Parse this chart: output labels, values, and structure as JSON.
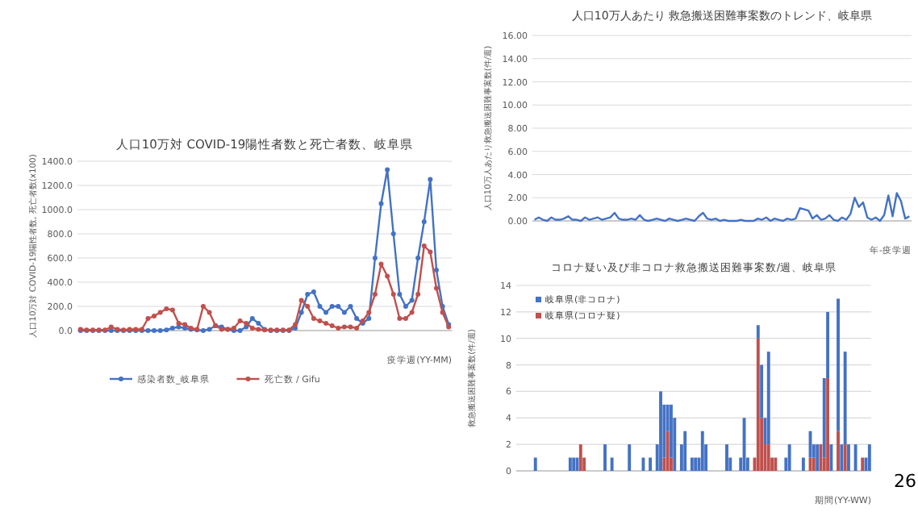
{
  "chart_data": [
    {
      "type": "line",
      "title": "人口10万対 COVID-19陽性者数と死亡者数、岐阜県",
      "xlabel": "疫学週(YY-MM)",
      "ylabel": "人口10万対 COVID-19陽性者数, 死亡者数(x100)",
      "categories": [
        null,
        null,
        null,
        null,
        null,
        null,
        null,
        null,
        null,
        null,
        null,
        null,
        null,
        null,
        null,
        null,
        null,
        null,
        null,
        null,
        null,
        null,
        null,
        null,
        null,
        null,
        null,
        null,
        null,
        null,
        null,
        null,
        null,
        null,
        null,
        null,
        null,
        null,
        null,
        null,
        null,
        null,
        null,
        null,
        null,
        null,
        null,
        null,
        null,
        null,
        null,
        null,
        null,
        null,
        null,
        null,
        null,
        null,
        null,
        null,
        null
      ],
      "series": [
        {
          "name": "感染者数_岐阜県",
          "color": "#4472c4",
          "values": [
            0,
            0,
            0,
            0,
            0,
            0,
            0,
            0,
            0,
            0,
            0,
            0,
            0,
            0,
            5,
            20,
            30,
            20,
            10,
            5,
            0,
            10,
            40,
            30,
            10,
            0,
            0,
            30,
            100,
            60,
            10,
            0,
            0,
            0,
            0,
            20,
            150,
            300,
            320,
            200,
            150,
            200,
            200,
            150,
            200,
            100,
            60,
            100,
            600,
            1050,
            1330,
            800,
            300,
            200,
            250,
            600,
            900,
            1250,
            500,
            200,
            50
          ]
        },
        {
          "name": "死亡数 / Gifu",
          "color": "#c0504d",
          "values": [
            10,
            5,
            5,
            5,
            5,
            30,
            10,
            5,
            10,
            10,
            10,
            100,
            120,
            150,
            180,
            170,
            60,
            50,
            20,
            10,
            200,
            150,
            40,
            10,
            10,
            20,
            80,
            60,
            20,
            10,
            5,
            5,
            5,
            5,
            5,
            50,
            250,
            200,
            100,
            80,
            60,
            40,
            20,
            30,
            30,
            20,
            80,
            150,
            300,
            550,
            450,
            300,
            100,
            100,
            150,
            300,
            700,
            650,
            350,
            150,
            30
          ]
        }
      ],
      "ylim": [
        0,
        1400
      ],
      "yticks": [
        {
          "value": 0,
          "label": "0.0"
        },
        {
          "value": 200,
          "label": "200.0"
        },
        {
          "value": 400,
          "label": "400.0"
        },
        {
          "value": 600,
          "label": "600.0"
        },
        {
          "value": 800,
          "label": "800.0"
        },
        {
          "value": 1000,
          "label": "1000.0"
        },
        {
          "value": 1200,
          "label": "1200.0"
        },
        {
          "value": 1400,
          "label": "1400.0"
        }
      ],
      "grid": "y",
      "legend": "bottom",
      "marker": "circle"
    },
    {
      "type": "line",
      "title": "人口10万人あたり 救急搬送困難事案数のトレンド、岐阜県",
      "xlabel": "年-疫学週",
      "ylabel": "人口10万人あたり救急搬送困難事案数(件/週)",
      "categories": [
        null,
        null,
        null,
        null,
        null,
        null,
        null,
        null,
        null,
        null,
        null,
        null,
        null,
        null,
        null,
        null,
        null,
        null,
        null,
        null,
        null,
        null,
        null,
        null,
        null,
        null,
        null,
        null,
        null,
        null,
        null,
        null,
        null,
        null,
        null,
        null,
        null,
        null,
        null,
        null,
        null,
        null,
        null,
        null,
        null,
        null,
        null,
        null,
        null,
        null,
        null,
        null,
        null,
        null,
        null,
        null,
        null,
        null,
        null,
        null,
        null,
        null,
        null,
        null,
        null,
        null,
        null,
        null,
        null,
        null,
        null,
        null,
        null,
        null,
        null,
        null,
        null,
        null,
        null,
        null,
        null,
        null,
        null,
        null,
        null,
        null,
        null,
        null,
        null,
        null
      ],
      "series": [
        {
          "color": "#4472c4",
          "values": [
            0.1,
            0.3,
            0.1,
            0.0,
            0.3,
            0.1,
            0.1,
            0.2,
            0.4,
            0.1,
            0.1,
            0.0,
            0.3,
            0.1,
            0.2,
            0.3,
            0.1,
            0.2,
            0.3,
            0.7,
            0.2,
            0.1,
            0.1,
            0.2,
            0.1,
            0.5,
            0.1,
            0.0,
            0.1,
            0.2,
            0.1,
            0.0,
            0.2,
            0.1,
            0.0,
            0.1,
            0.2,
            0.1,
            0.0,
            0.4,
            0.7,
            0.2,
            0.1,
            0.2,
            0.0,
            0.1,
            0.0,
            0.0,
            0.0,
            0.1,
            0.0,
            0.0,
            0.0,
            0.2,
            0.1,
            0.3,
            0.0,
            0.2,
            0.1,
            0.0,
            0.2,
            0.1,
            0.2,
            1.1,
            1.0,
            0.9,
            0.2,
            0.5,
            0.1,
            0.2,
            0.5,
            0.1,
            0.0,
            0.3,
            0.1,
            0.6,
            2.0,
            1.2,
            1.6,
            0.3,
            0.1,
            0.3,
            0.0,
            0.5,
            2.2,
            0.4,
            2.4,
            1.7,
            0.2,
            0.4
          ]
        }
      ],
      "ylim": [
        0,
        16
      ],
      "yticks": [
        {
          "value": 0,
          "label": "0.00"
        },
        {
          "value": 2,
          "label": "2.00"
        },
        {
          "value": 4,
          "label": "4.00"
        },
        {
          "value": 6,
          "label": "6.00"
        },
        {
          "value": 8,
          "label": "8.00"
        },
        {
          "value": 10,
          "label": "10.00"
        },
        {
          "value": 12,
          "label": "12.00"
        },
        {
          "value": 14,
          "label": "14.00"
        },
        {
          "value": 16,
          "label": "16.00"
        }
      ],
      "grid": "y"
    },
    {
      "type": "bar",
      "stacked": true,
      "title": "コロナ疑い及び非コロナ救急搬送困難事案数/週、岐阜県",
      "xlabel": "期間(YY-WW)",
      "ylabel": "救急搬送困難事案数(件/週)",
      "categories": [
        null,
        null,
        null,
        null,
        null,
        null,
        null,
        null,
        null,
        null,
        null,
        null,
        null,
        null,
        null,
        null,
        null,
        null,
        null,
        null,
        null,
        null,
        null,
        null,
        null,
        null,
        null,
        null,
        null,
        null,
        null,
        null,
        null,
        null,
        null,
        null,
        null,
        null,
        null,
        null,
        null,
        null,
        null,
        null,
        null,
        null,
        null,
        null,
        null,
        null,
        null,
        null,
        null,
        null,
        null,
        null,
        null,
        null,
        null,
        null,
        null,
        null,
        null,
        null,
        null,
        null,
        null,
        null,
        null,
        null,
        null,
        null,
        null,
        null,
        null,
        null,
        null,
        null,
        null,
        null,
        null,
        null,
        null,
        null,
        null,
        null,
        null,
        null,
        null,
        null,
        null,
        null,
        null,
        null,
        null,
        null,
        null,
        null,
        null,
        null,
        null,
        null
      ],
      "series": [
        {
          "name": "岐阜県(コロナ疑)",
          "color": "#c0504d",
          "values": [
            0,
            0,
            0,
            0,
            0,
            0,
            0,
            0,
            0,
            0,
            0,
            0,
            0,
            0,
            0,
            0,
            0,
            0,
            2,
            1,
            0,
            0,
            0,
            0,
            0,
            0,
            0,
            0,
            0,
            0,
            0,
            0,
            0,
            0,
            0,
            0,
            0,
            0,
            0,
            0,
            0,
            0,
            1,
            3,
            1,
            0,
            0,
            0,
            0,
            0,
            0,
            0,
            0,
            0,
            0,
            0,
            0,
            0,
            0,
            0,
            0,
            0,
            0,
            0,
            0,
            0,
            0,
            0,
            1,
            10,
            4,
            2,
            2,
            1,
            1,
            0,
            0,
            0,
            0,
            0,
            0,
            0,
            0,
            0,
            1,
            1,
            0,
            2,
            1,
            7,
            0,
            0,
            3,
            0,
            2,
            0,
            0,
            0,
            0,
            1,
            0,
            0
          ]
        },
        {
          "name": "岐阜県(非コロナ)",
          "color": "#4472c4",
          "values": [
            0,
            0,
            0,
            0,
            0,
            1,
            0,
            0,
            0,
            0,
            0,
            0,
            0,
            0,
            0,
            1,
            1,
            1,
            0,
            0,
            0,
            0,
            0,
            0,
            0,
            2,
            0,
            1,
            0,
            0,
            0,
            0,
            2,
            0,
            0,
            0,
            1,
            0,
            1,
            0,
            2,
            6,
            4,
            2,
            4,
            4,
            0,
            2,
            3,
            0,
            1,
            1,
            1,
            3,
            2,
            0,
            0,
            0,
            0,
            0,
            2,
            1,
            0,
            0,
            1,
            4,
            1,
            0,
            0,
            1,
            4,
            2,
            7,
            0,
            0,
            0,
            0,
            1,
            2,
            0,
            0,
            0,
            1,
            0,
            2,
            1,
            2,
            0,
            6,
            5,
            2,
            0,
            10,
            2,
            7,
            2,
            0,
            2,
            0,
            0,
            1,
            2
          ]
        }
      ],
      "ylim": [
        0,
        14
      ],
      "yticks": [
        0,
        2,
        4,
        6,
        8,
        10,
        12,
        14
      ],
      "grid": "y",
      "legend": "top left",
      "annotations": [
        "26"
      ]
    }
  ]
}
